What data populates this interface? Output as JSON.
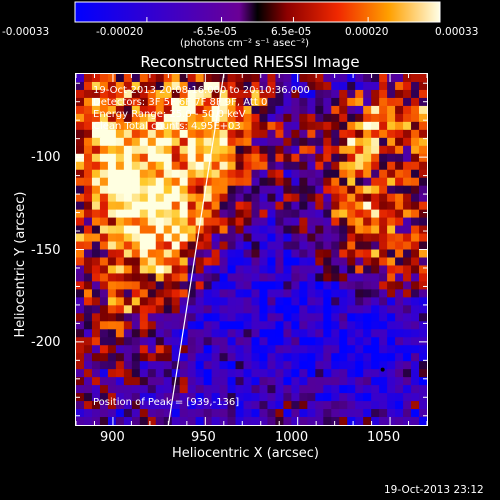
{
  "colorbar": {
    "min": -0.00033,
    "max": 0.00033,
    "ticks": [
      "-0.00033",
      "-0.00020",
      "-6.5e-05",
      "6.5e-05",
      "0.00020",
      "0.00033"
    ],
    "tick_values": [
      -0.00033,
      -0.0002,
      -6.5e-05,
      6.5e-05,
      0.0002,
      0.00033
    ],
    "unit_label": "(photons cm⁻² s⁻¹ asec⁻²)"
  },
  "chart_data": {
    "type": "heatmap",
    "title": "Reconstructed RHESSI Image",
    "xlabel": "Heliocentric X (arcsec)",
    "ylabel": "Heliocentric Y (arcsec)",
    "xlim": [
      880,
      1070
    ],
    "ylim": [
      -245,
      -55
    ],
    "xticks": [
      900,
      950,
      1000,
      1050
    ],
    "yticks": [
      -100,
      -150,
      -200
    ],
    "colormap": "rhessi-blue-red-yellow",
    "peak_position": [
      939,
      -136
    ],
    "limb_arc": [
      [
        930,
        -245
      ],
      [
        941,
        -175
      ],
      [
        952,
        -105
      ],
      [
        960,
        -55
      ]
    ],
    "annotations": {
      "time_range": "19-Oct-2013 20:08:16.000 to 20:10:36.000",
      "detectors": "Detectors: 3F 5F 6F 7F 8F 9F, Att 0",
      "energy_range": "Energy Range: 25.0 - 50.0 keV",
      "clean_counts": "Clean    Total counts: 4.95E+03",
      "peak_label": "Position of Peak = [939,-136]"
    }
  },
  "footer": {
    "timestamp": "19-Oct-2013 23:12"
  }
}
